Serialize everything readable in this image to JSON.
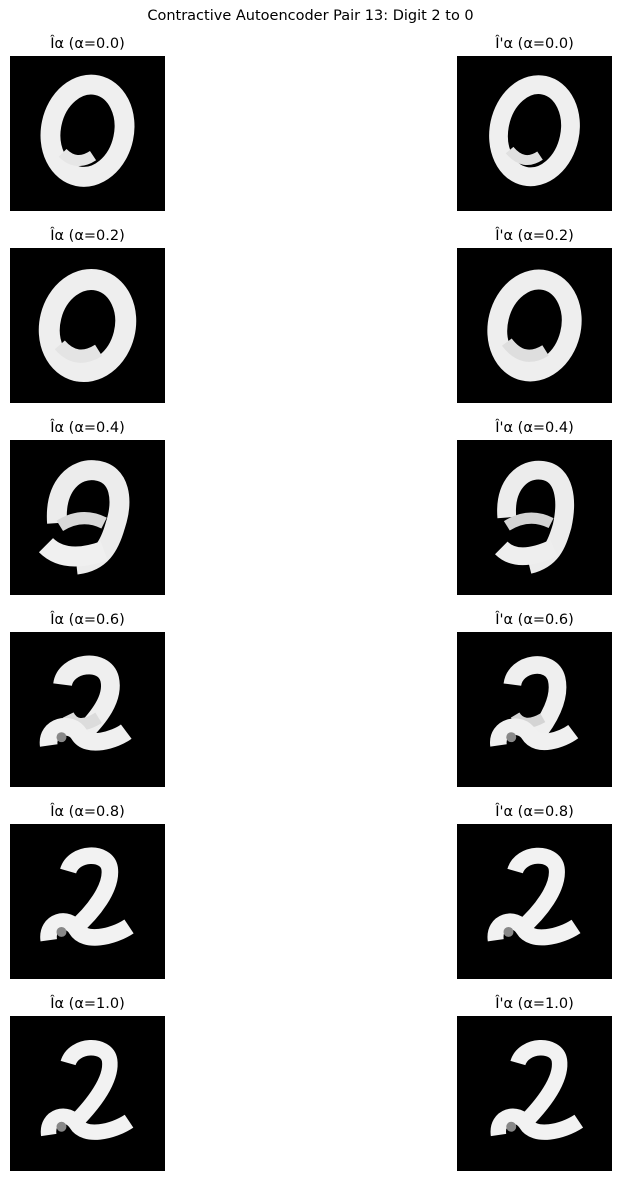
{
  "figure": {
    "title": "Contractive Autoencoder Pair 13: Digit 2 to 0"
  },
  "panels": [
    [
      {
        "label": "Îα (α=0.0)",
        "alpha": 0.0,
        "digit_blend": "0"
      },
      {
        "label": "Î'α (α=0.0)",
        "alpha": 0.0,
        "digit_blend": "0"
      }
    ],
    [
      {
        "label": "Îα (α=0.2)",
        "alpha": 0.2,
        "digit_blend": "0"
      },
      {
        "label": "Î'α (α=0.2)",
        "alpha": 0.2,
        "digit_blend": "0"
      }
    ],
    [
      {
        "label": "Îα (α=0.4)",
        "alpha": 0.4,
        "digit_blend": "0/2 mix"
      },
      {
        "label": "Î'α (α=0.4)",
        "alpha": 0.4,
        "digit_blend": "0/2 mix"
      }
    ],
    [
      {
        "label": "Îα (α=0.6)",
        "alpha": 0.6,
        "digit_blend": "2/0 mix"
      },
      {
        "label": "Î'α (α=0.6)",
        "alpha": 0.6,
        "digit_blend": "2/0 mix"
      }
    ],
    [
      {
        "label": "Îα (α=0.8)",
        "alpha": 0.8,
        "digit_blend": "2"
      },
      {
        "label": "Î'α (α=0.8)",
        "alpha": 0.8,
        "digit_blend": "2"
      }
    ],
    [
      {
        "label": "Îα (α=1.0)",
        "alpha": 1.0,
        "digit_blend": "2"
      },
      {
        "label": "Î'α (α=1.0)",
        "alpha": 1.0,
        "digit_blend": "2"
      }
    ]
  ],
  "colors": {
    "background": "#ffffff",
    "image_background": "#000000",
    "digit_stroke": "#f2f2f2"
  }
}
